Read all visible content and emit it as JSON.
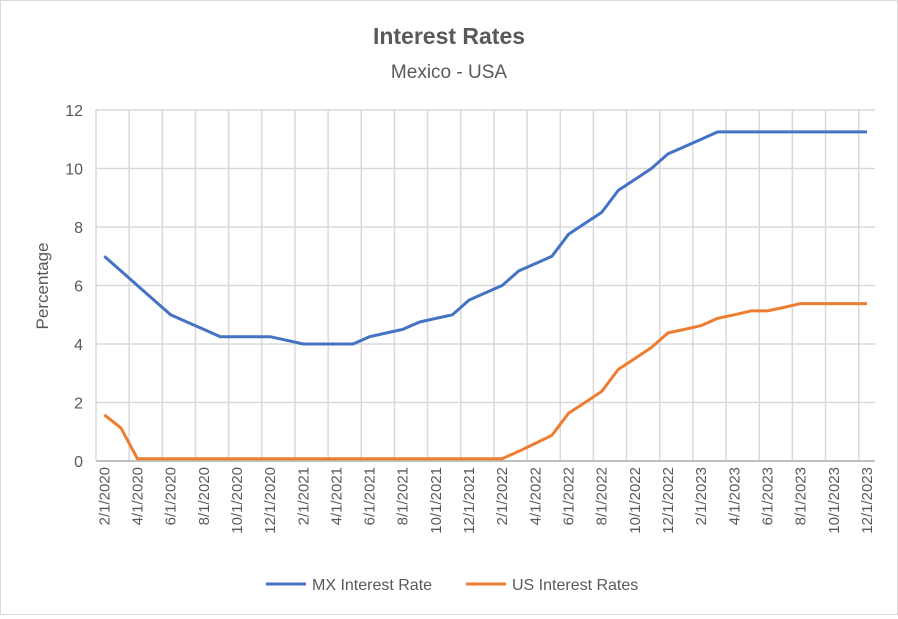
{
  "chart_data": {
    "type": "line",
    "title": "Interest Rates",
    "subtitle": "Mexico - USA",
    "xlabel": "",
    "ylabel": "Percentage",
    "ylim": [
      0,
      12
    ],
    "yticks": [
      0,
      2,
      4,
      6,
      8,
      10,
      12
    ],
    "grid": true,
    "legend_position": "bottom",
    "x_tick_labels": [
      "2/1/2020",
      "4/1/2020",
      "6/1/2020",
      "8/1/2020",
      "10/1/2020",
      "12/1/2020",
      "2/1/2021",
      "4/1/2021",
      "6/1/2021",
      "8/1/2021",
      "10/1/2021",
      "12/1/2021",
      "2/1/2022",
      "4/1/2022",
      "6/1/2022",
      "8/1/2022",
      "10/1/2022",
      "12/1/2022",
      "2/1/2023",
      "4/1/2023",
      "6/1/2023",
      "8/1/2023",
      "10/1/2023",
      "12/1/2023"
    ],
    "x_start": "2020-02-01",
    "x_frequency": "monthly",
    "series": [
      {
        "name": "MX Interest Rate",
        "color": "#4472c4",
        "values": [
          7.0,
          6.5,
          6.0,
          5.5,
          5.0,
          4.75,
          4.5,
          4.25,
          4.25,
          4.25,
          4.25,
          4.125,
          4.0,
          4.0,
          4.0,
          4.0,
          4.25,
          4.375,
          4.5,
          4.75,
          4.875,
          5.0,
          5.5,
          5.75,
          6.0,
          6.5,
          6.75,
          7.0,
          7.75,
          8.125,
          8.5,
          9.25,
          9.625,
          10.0,
          10.5,
          10.75,
          11.0,
          11.25,
          11.25,
          11.25,
          11.25,
          11.25,
          11.25,
          11.25,
          11.25,
          11.25,
          11.25
        ]
      },
      {
        "name": "US Interest Rates",
        "color": "#ed7d31",
        "values": [
          1.58,
          1.13,
          0.08,
          0.08,
          0.08,
          0.08,
          0.08,
          0.08,
          0.08,
          0.08,
          0.08,
          0.08,
          0.08,
          0.08,
          0.08,
          0.08,
          0.08,
          0.08,
          0.08,
          0.08,
          0.08,
          0.08,
          0.08,
          0.08,
          0.08,
          0.33,
          0.6,
          0.88,
          1.63,
          2.0,
          2.38,
          3.13,
          3.5,
          3.88,
          4.38,
          4.5,
          4.63,
          4.88,
          5.0,
          5.13,
          5.13,
          5.25,
          5.38,
          5.38,
          5.38,
          5.38,
          5.38
        ]
      }
    ]
  }
}
